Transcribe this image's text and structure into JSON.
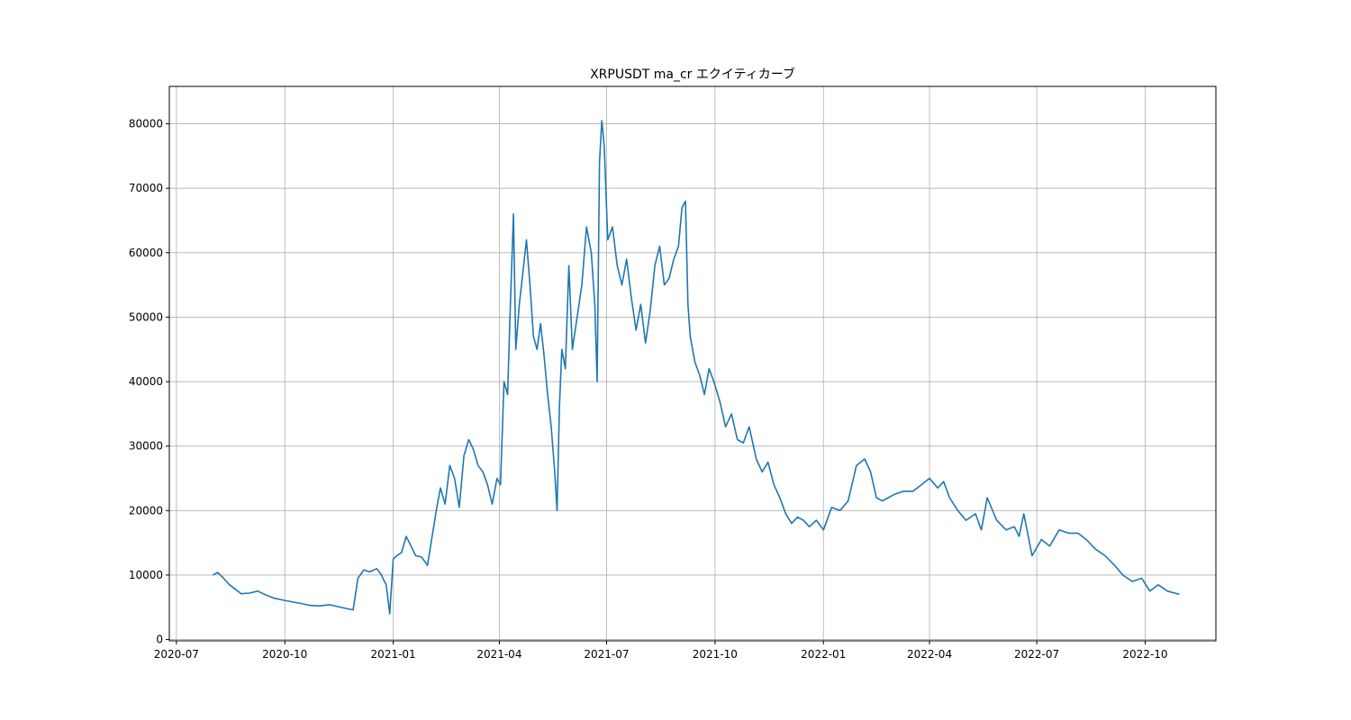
{
  "chart_data": {
    "type": "line",
    "title": "XRPUSDT ma_cr エクイティカーブ",
    "xlabel": "",
    "ylabel": "",
    "x_axis_kind": "date",
    "xlim": [
      "2020-06-25",
      "2022-11-30"
    ],
    "ylim": [
      -200,
      85800
    ],
    "x_ticks": [
      "2020-07",
      "2020-10",
      "2021-01",
      "2021-04",
      "2021-07",
      "2021-10",
      "2022-01",
      "2022-04",
      "2022-07",
      "2022-10"
    ],
    "y_ticks": [
      0,
      10000,
      20000,
      30000,
      40000,
      50000,
      60000,
      70000,
      80000
    ],
    "grid": true,
    "line_color": "#1f77b4",
    "series": [
      {
        "x": [
          "2020-08-01",
          "2020-08-05",
          "2020-08-10",
          "2020-08-15",
          "2020-08-20",
          "2020-08-25",
          "2020-09-01",
          "2020-09-08",
          "2020-09-15",
          "2020-09-22",
          "2020-09-30",
          "2020-10-08",
          "2020-10-15",
          "2020-10-22",
          "2020-10-30",
          "2020-11-08",
          "2020-11-15",
          "2020-11-20",
          "2020-11-25",
          "2020-11-28",
          "2020-12-02",
          "2020-12-07",
          "2020-12-12",
          "2020-12-18",
          "2020-12-22",
          "2020-12-24",
          "2020-12-26",
          "2020-12-29",
          "2021-01-01",
          "2021-01-04",
          "2021-01-08",
          "2021-01-12",
          "2021-01-16",
          "2021-01-20",
          "2021-01-25",
          "2021-01-30",
          "2021-02-03",
          "2021-02-07",
          "2021-02-10",
          "2021-02-14",
          "2021-02-18",
          "2021-02-22",
          "2021-02-26",
          "2021-03-02",
          "2021-03-06",
          "2021-03-10",
          "2021-03-14",
          "2021-03-18",
          "2021-03-22",
          "2021-03-26",
          "2021-03-30",
          "2021-04-02",
          "2021-04-05",
          "2021-04-08",
          "2021-04-10",
          "2021-04-13",
          "2021-04-15",
          "2021-04-18",
          "2021-04-21",
          "2021-04-24",
          "2021-04-27",
          "2021-04-30",
          "2021-05-03",
          "2021-05-06",
          "2021-05-09",
          "2021-05-12",
          "2021-05-15",
          "2021-05-18",
          "2021-05-20",
          "2021-05-22",
          "2021-05-24",
          "2021-05-27",
          "2021-05-30",
          "2021-06-02",
          "2021-06-06",
          "2021-06-10",
          "2021-06-14",
          "2021-06-18",
          "2021-06-21",
          "2021-06-23",
          "2021-06-25",
          "2021-06-27",
          "2021-06-29",
          "2021-07-02",
          "2021-07-06",
          "2021-07-10",
          "2021-07-14",
          "2021-07-18",
          "2021-07-22",
          "2021-07-26",
          "2021-07-30",
          "2021-08-03",
          "2021-08-07",
          "2021-08-11",
          "2021-08-15",
          "2021-08-19",
          "2021-08-23",
          "2021-08-27",
          "2021-08-31",
          "2021-09-03",
          "2021-09-06",
          "2021-09-08",
          "2021-09-10",
          "2021-09-14",
          "2021-09-18",
          "2021-09-22",
          "2021-09-26",
          "2021-09-30",
          "2021-10-05",
          "2021-10-10",
          "2021-10-15",
          "2021-10-20",
          "2021-10-25",
          "2021-10-30",
          "2021-11-05",
          "2021-11-10",
          "2021-11-15",
          "2021-11-20",
          "2021-11-25",
          "2021-11-30",
          "2021-12-05",
          "2021-12-10",
          "2021-12-15",
          "2021-12-20",
          "2021-12-26",
          "2022-01-01",
          "2022-01-08",
          "2022-01-15",
          "2022-01-22",
          "2022-01-29",
          "2022-02-05",
          "2022-02-10",
          "2022-02-15",
          "2022-02-20",
          "2022-02-25",
          "2022-03-02",
          "2022-03-10",
          "2022-03-18",
          "2022-03-25",
          "2022-04-01",
          "2022-04-08",
          "2022-04-13",
          "2022-04-18",
          "2022-04-25",
          "2022-05-02",
          "2022-05-10",
          "2022-05-15",
          "2022-05-20",
          "2022-05-28",
          "2022-06-05",
          "2022-06-12",
          "2022-06-16",
          "2022-06-20",
          "2022-06-27",
          "2022-07-05",
          "2022-07-12",
          "2022-07-20",
          "2022-07-28",
          "2022-08-05",
          "2022-08-12",
          "2022-08-20",
          "2022-08-28",
          "2022-09-05",
          "2022-09-12",
          "2022-09-20",
          "2022-09-28",
          "2022-10-05",
          "2022-10-12",
          "2022-10-20",
          "2022-10-30"
        ],
        "y": [
          10000,
          10400,
          9500,
          8500,
          7800,
          7100,
          7200,
          7500,
          6900,
          6400,
          6100,
          5800,
          5600,
          5300,
          5200,
          5400,
          5100,
          4900,
          4700,
          4600,
          9500,
          10800,
          10500,
          11000,
          10000,
          9200,
          8500,
          4000,
          12500,
          13000,
          13500,
          16000,
          14500,
          13000,
          12800,
          11500,
          16000,
          20500,
          23500,
          21000,
          27000,
          25000,
          20500,
          28500,
          31000,
          29500,
          27000,
          26000,
          24000,
          21000,
          25000,
          24000,
          40000,
          38000,
          50000,
          66000,
          45000,
          52000,
          57000,
          62000,
          55000,
          47000,
          45000,
          49000,
          44000,
          38000,
          33000,
          26000,
          20000,
          36000,
          45000,
          42000,
          58000,
          45000,
          50000,
          55000,
          64000,
          60000,
          52000,
          40000,
          74000,
          80500,
          76500,
          62000,
          64000,
          58000,
          55000,
          59000,
          53000,
          48000,
          52000,
          46000,
          51000,
          58000,
          61000,
          55000,
          56000,
          59000,
          61000,
          67000,
          68000,
          52000,
          47000,
          43000,
          41000,
          38000,
          42000,
          40000,
          37000,
          33000,
          35000,
          31000,
          30500,
          33000,
          28000,
          26000,
          27500,
          24000,
          22000,
          19500,
          18000,
          19000,
          18500,
          17500,
          18500,
          17000,
          20500,
          20000,
          21500,
          27000,
          28000,
          26000,
          22000,
          21500,
          22000,
          22500,
          23000,
          23000,
          24000,
          25000,
          23500,
          24500,
          22000,
          20000,
          18500,
          19500,
          17000,
          22000,
          18500,
          17000,
          17500,
          16000,
          19500,
          13000,
          15500,
          14500,
          17000,
          16500,
          16500,
          15500,
          14000,
          13000,
          11500,
          10000,
          9000,
          9500,
          7500,
          8500,
          7500,
          7000
        ]
      }
    ]
  }
}
